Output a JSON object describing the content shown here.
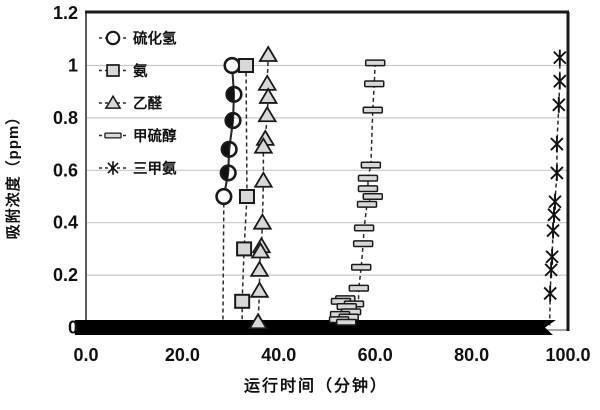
{
  "chart_data": {
    "type": "scatter",
    "title": "",
    "xlabel": "运行时间（分钟）",
    "ylabel": "吸附浓度（ppm）",
    "xlim": [
      0,
      100
    ],
    "ylim": [
      0,
      1.2
    ],
    "grid": "horizontal-light",
    "legend_position": "top-left-inside",
    "x_ticks": [
      {
        "label": "0.0",
        "value": 0
      },
      {
        "label": "20.0",
        "value": 20
      },
      {
        "label": "40.0",
        "value": 40
      },
      {
        "label": "60.0",
        "value": 60
      },
      {
        "label": "80.0",
        "value": 80
      },
      {
        "label": "100.0",
        "value": 100
      }
    ],
    "y_ticks": [
      {
        "label": "0",
        "value": 0
      },
      {
        "label": "0.2",
        "value": 0.2
      },
      {
        "label": "0.4",
        "value": 0.4
      },
      {
        "label": "0.6",
        "value": 0.6
      },
      {
        "label": "0.8",
        "value": 0.8
      },
      {
        "label": "1",
        "value": 1.0
      },
      {
        "label": "1.2",
        "value": 1.2
      }
    ],
    "colors": {
      "marker_fill": "#d8d8d8",
      "marker_stroke": "#1a1a1a",
      "line": "#2b2b2b",
      "grid": "#c9c9c9",
      "baseline_bar": "#000000",
      "text": "#111111",
      "border": "#1a1a1a"
    },
    "baseline_bar": {
      "at_y": 0,
      "x_start": -2.3,
      "x_end": 97.5,
      "note": "thick black band along y=0 with notched right end"
    },
    "series": [
      {
        "name": "硫化氢",
        "marker": "circle",
        "line_style": "solid",
        "points": [
          [
            30.3,
            1.0
          ],
          [
            30.7,
            0.89
          ],
          [
            30.5,
            0.79
          ],
          [
            29.7,
            0.68
          ],
          [
            29.5,
            0.59
          ],
          [
            28.6,
            0.5
          ]
        ],
        "point_variants": [
          "open",
          "half",
          "half",
          "half",
          "half",
          "open"
        ],
        "line_points": 6,
        "drop_to_zero_x": 28.4
      },
      {
        "name": "氨",
        "marker": "square",
        "line_style": "dashed",
        "points": [
          [
            33.2,
            1.0
          ],
          [
            33.4,
            0.5
          ],
          [
            32.8,
            0.3
          ],
          [
            32.4,
            0.1
          ]
        ],
        "line_points": 4,
        "drop_to_zero_x": 32.4
      },
      {
        "name": "乙醛",
        "marker": "triangle",
        "line_style": "dashed",
        "points": [
          [
            37.8,
            1.04
          ],
          [
            37.6,
            0.93
          ],
          [
            37.8,
            0.88
          ],
          [
            37.6,
            0.81
          ],
          [
            37.2,
            0.72
          ],
          [
            36.8,
            0.69
          ],
          [
            36.8,
            0.56
          ],
          [
            36.6,
            0.4
          ],
          [
            36.4,
            0.31
          ],
          [
            36.2,
            0.29
          ],
          [
            36.0,
            0.22
          ],
          [
            36.0,
            0.14
          ],
          [
            35.7,
            0.02
          ]
        ],
        "line_points": 13,
        "drop_to_zero_x": 35.7
      },
      {
        "name": "甲硫醇",
        "marker": "hbar",
        "line_style": "dashed",
        "points": [
          [
            60.0,
            1.01
          ],
          [
            59.8,
            0.93
          ],
          [
            59.5,
            0.83
          ],
          [
            59.1,
            0.62
          ],
          [
            58.5,
            0.57
          ],
          [
            58.5,
            0.53
          ],
          [
            59.5,
            0.5
          ],
          [
            58.3,
            0.47
          ],
          [
            57.7,
            0.38
          ],
          [
            57.5,
            0.32
          ],
          [
            57.1,
            0.23
          ],
          [
            56.6,
            0.15
          ],
          [
            53.8,
            0.11
          ],
          [
            52.9,
            0.1
          ],
          [
            55.6,
            0.09
          ],
          [
            54.1,
            0.08
          ],
          [
            55.0,
            0.06
          ],
          [
            52.7,
            0.05
          ],
          [
            54.5,
            0.04
          ],
          [
            52.5,
            0.03
          ],
          [
            54.0,
            0.02
          ]
        ],
        "line_points": 12,
        "drop_to_zero_x": 56.4
      },
      {
        "name": "三甲氨",
        "marker": "asterisk",
        "line_style": "dashed",
        "points": [
          [
            98.3,
            1.03
          ],
          [
            98.3,
            0.94
          ],
          [
            98.1,
            0.85
          ],
          [
            97.7,
            0.7
          ],
          [
            97.7,
            0.59
          ],
          [
            97.3,
            0.48
          ],
          [
            97.1,
            0.43
          ],
          [
            96.9,
            0.37
          ],
          [
            96.7,
            0.27
          ],
          [
            96.5,
            0.22
          ],
          [
            96.3,
            0.13
          ]
        ],
        "line_points": 11,
        "drop_to_zero_x": 96.2
      }
    ]
  }
}
